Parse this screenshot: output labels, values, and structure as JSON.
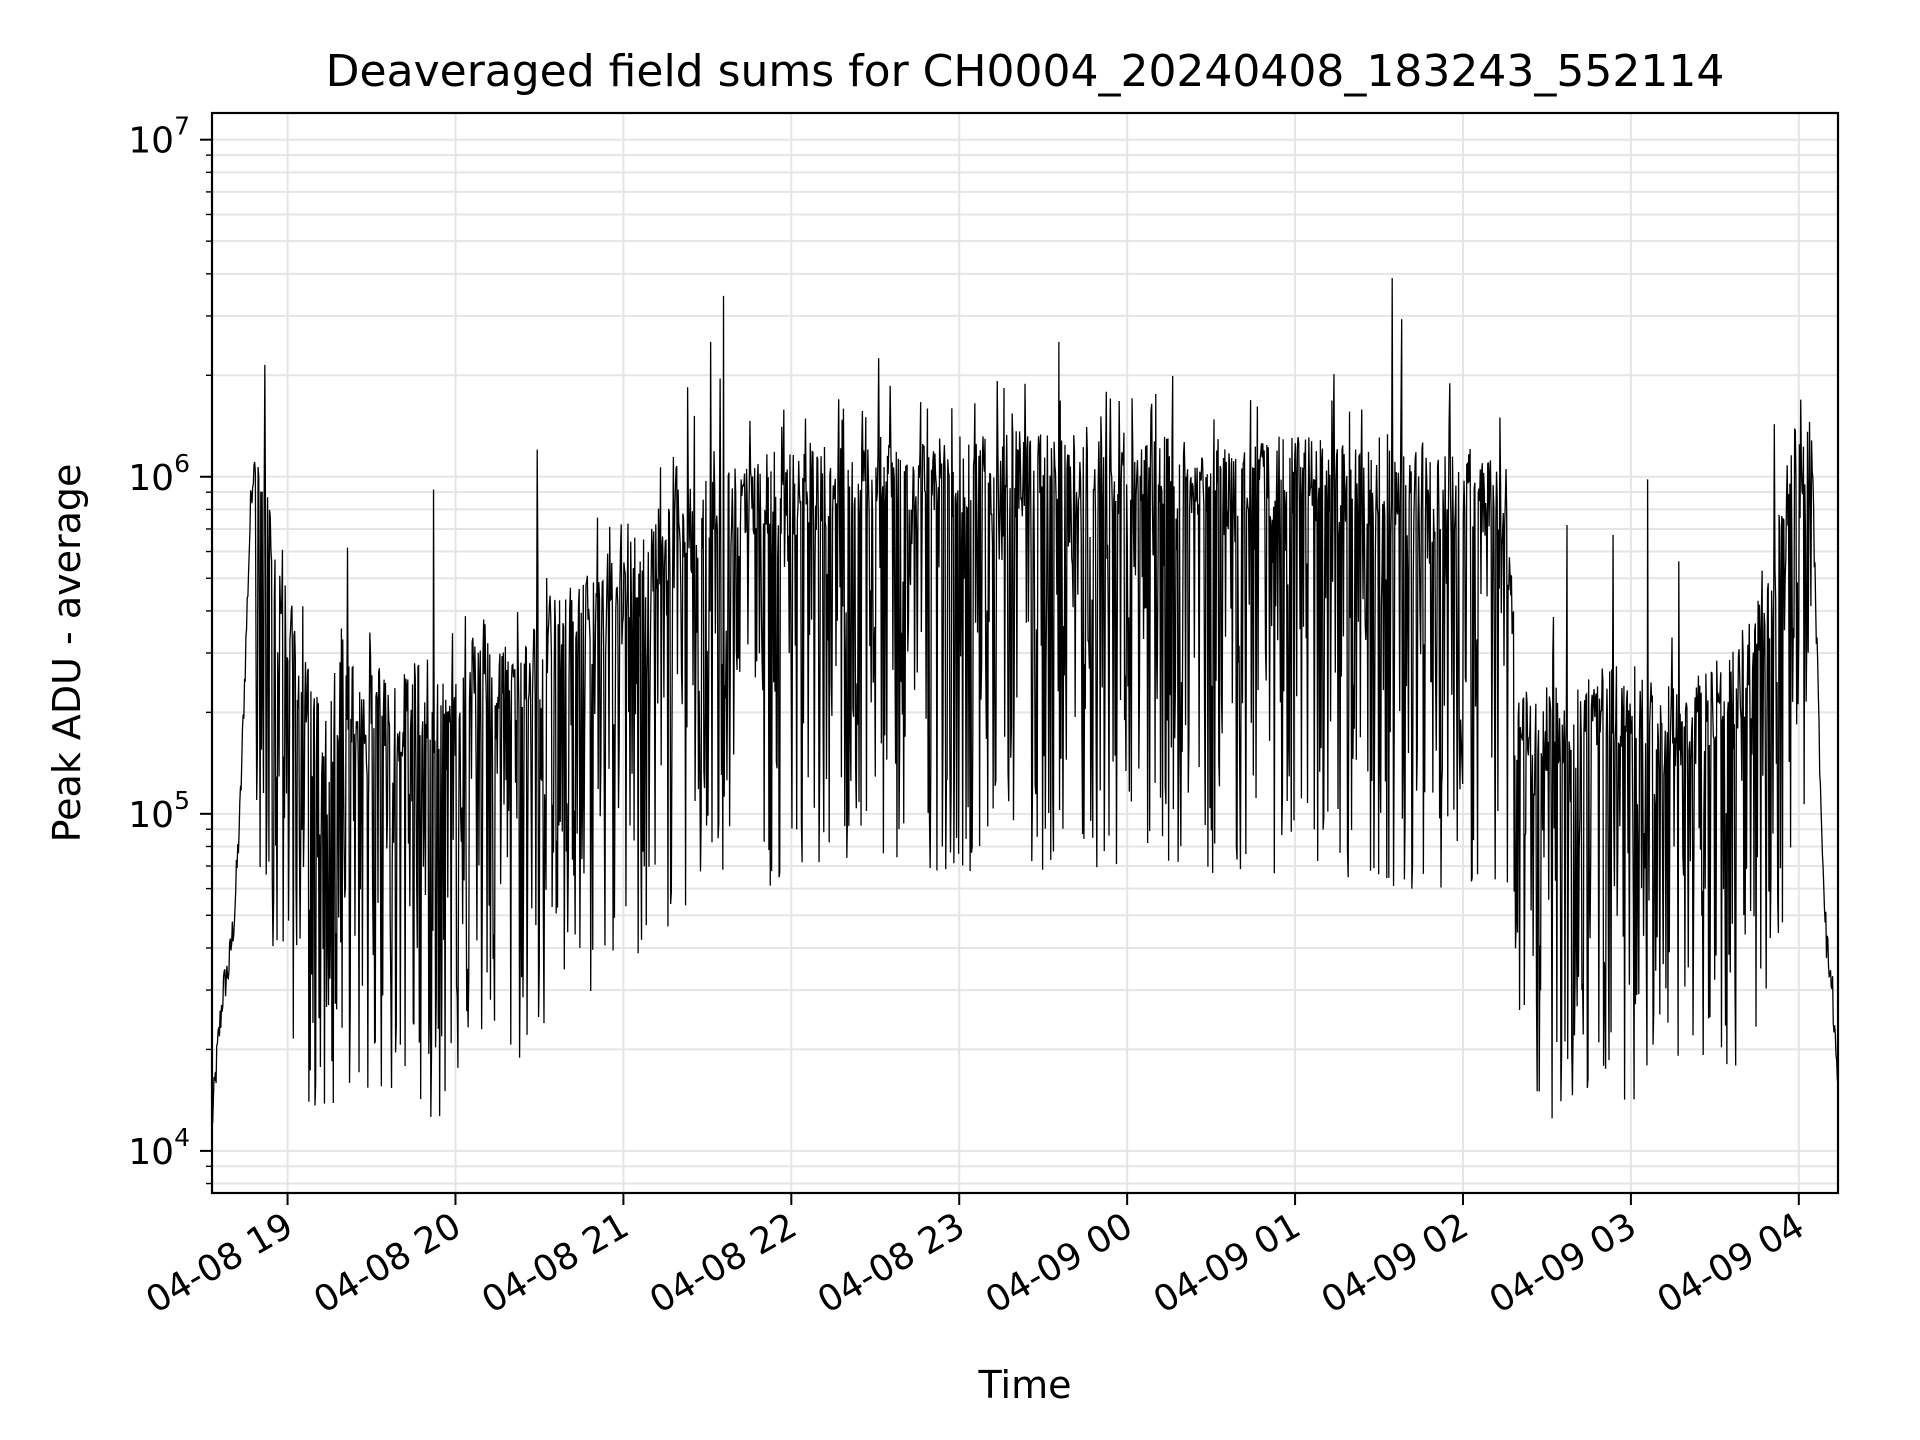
{
  "chart_data": {
    "type": "line",
    "title": "Deaveraged field sums for CH0004_20240408_183243_552114",
    "xlabel": "Time",
    "ylabel": "Peak ADU - average",
    "yscale": "log",
    "ylim": [
      7500,
      12000000
    ],
    "xlim": [
      "2024-04-08 18:33",
      "2024-04-09 04:14"
    ],
    "x_ticks": [
      "04-08 19",
      "04-08 20",
      "04-08 21",
      "04-08 22",
      "04-08 23",
      "04-09 00",
      "04-09 01",
      "04-09 02",
      "04-09 03",
      "04-09 04"
    ],
    "y_ticks": [
      {
        "base": "10",
        "exp": "4",
        "value": 10000
      },
      {
        "base": "10",
        "exp": "5",
        "value": 100000
      },
      {
        "base": "10",
        "exp": "6",
        "value": 1000000
      },
      {
        "base": "10",
        "exp": "7",
        "value": 10000000
      }
    ],
    "grid": true,
    "line_color": "#000000",
    "grid_color": "#e5e5e5",
    "series": [
      {
        "x": [
          "2024-04-08 18:33",
          "2024-04-08 18:35",
          "2024-04-08 18:37",
          "2024-04-08 18:39",
          "2024-04-08 18:41",
          "2024-04-08 18:43",
          "2024-04-08 18:45",
          "2024-04-08 18:47",
          "2024-04-08 18:48",
          "2024-04-08 18:50",
          "2024-04-08 18:52",
          "2024-04-08 18:55",
          "2024-04-08 18:58",
          "2024-04-08 19:00",
          "2024-04-08 19:05",
          "2024-04-08 19:10",
          "2024-04-08 19:15",
          "2024-04-08 19:20",
          "2024-04-08 19:25",
          "2024-04-08 19:28",
          "2024-04-08 19:30",
          "2024-04-08 19:35",
          "2024-04-08 19:40",
          "2024-04-08 19:45",
          "2024-04-08 19:50",
          "2024-04-08 19:55",
          "2024-04-08 20:00",
          "2024-04-08 20:10",
          "2024-04-08 20:20",
          "2024-04-08 20:30",
          "2024-04-08 20:40",
          "2024-04-08 20:50",
          "2024-04-08 21:00",
          "2024-04-08 21:10",
          "2024-04-08 21:20",
          "2024-04-08 21:30",
          "2024-04-08 21:40",
          "2024-04-08 21:50",
          "2024-04-08 22:00",
          "2024-04-08 22:20",
          "2024-04-08 22:40",
          "2024-04-08 23:00",
          "2024-04-08 23:20",
          "2024-04-08 23:40",
          "2024-04-09 00:00",
          "2024-04-09 00:20",
          "2024-04-09 00:40",
          "2024-04-09 01:00",
          "2024-04-09 01:20",
          "2024-04-09 01:40",
          "2024-04-09 02:00",
          "2024-04-09 02:15",
          "2024-04-09 02:20",
          "2024-04-09 02:30",
          "2024-04-09 02:45",
          "2024-04-09 03:00",
          "2024-04-09 03:15",
          "2024-04-09 03:30",
          "2024-04-09 03:40",
          "2024-04-09 03:50",
          "2024-04-09 04:00",
          "2024-04-09 04:05",
          "2024-04-09 04:08",
          "2024-04-09 04:10",
          "2024-04-09 04:12",
          "2024-04-09 04:14"
        ],
        "y": [
          12000,
          20000,
          30000,
          35000,
          50000,
          100000,
          300000,
          900000,
          1100000,
          800000,
          600000,
          500000,
          350000,
          300000,
          200000,
          150000,
          130000,
          200000,
          180000,
          150000,
          200000,
          170000,
          150000,
          200000,
          160000,
          140000,
          200000,
          250000,
          200000,
          250000,
          300000,
          350000,
          400000,
          500000,
          600000,
          650000,
          700000,
          750000,
          750000,
          800000,
          850000,
          850000,
          850000,
          850000,
          800000,
          850000,
          800000,
          850000,
          800000,
          750000,
          750000,
          700000,
          150000,
          150000,
          170000,
          180000,
          150000,
          180000,
          200000,
          350000,
          1200000,
          900000,
          100000,
          40000,
          30000,
          15000
        ]
      }
    ]
  }
}
